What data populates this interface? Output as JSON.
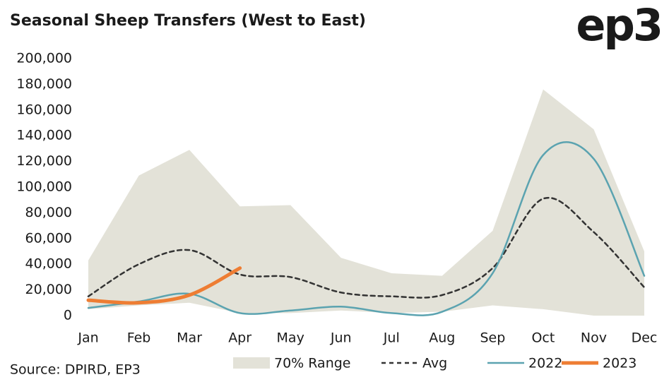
{
  "chart_data": {
    "type": "line",
    "title": "Seasonal Sheep Transfers (West to East)",
    "logo": "ep3",
    "source": "Source: DPIRD, EP3",
    "categories": [
      "Jan",
      "Feb",
      "Mar",
      "Apr",
      "May",
      "Jun",
      "Jul",
      "Aug",
      "Sep",
      "Oct",
      "Nov",
      "Dec"
    ],
    "ylim": [
      0,
      200000
    ],
    "yticks": [
      0,
      {
        "value": 20000,
        "label": "20,000"
      },
      {
        "value": 40000,
        "label": "40,000"
      },
      {
        "value": 60000,
        "label": "60,000"
      },
      {
        "value": 80000,
        "label": "80,000"
      },
      {
        "value": 100000,
        "label": "100,000"
      },
      {
        "value": 120000,
        "label": "120,000"
      },
      {
        "value": 140000,
        "label": "140,000"
      },
      {
        "value": 160000,
        "label": "160,000"
      },
      {
        "value": 180000,
        "label": "180,000"
      },
      {
        "value": 200000,
        "label": "200,000"
      }
    ],
    "series": [
      {
        "name": "70% Range",
        "kind": "range",
        "color": "#e3e2d8",
        "high": [
          43000,
          109000,
          129000,
          85000,
          86000,
          45000,
          33000,
          31000,
          66000,
          176000,
          145000,
          50000
        ],
        "low": [
          5000,
          8000,
          10000,
          2000,
          2000,
          4000,
          2000,
          3000,
          8000,
          5000,
          0,
          0
        ]
      },
      {
        "name": "Avg",
        "color": "#333333",
        "style": "dashed",
        "values": [
          15000,
          40000,
          51000,
          32000,
          30000,
          18000,
          15000,
          16000,
          37000,
          91000,
          65000,
          22000
        ]
      },
      {
        "name": "2022",
        "color": "#5ba3b0",
        "style": "solid",
        "values": [
          6000,
          11000,
          17000,
          2000,
          4000,
          7000,
          2000,
          3000,
          33000,
          125000,
          122000,
          31000
        ]
      },
      {
        "name": "2023",
        "color": "#ee7d33",
        "style": "thick",
        "values": [
          12000,
          10000,
          16000,
          37000,
          null,
          null,
          null,
          null,
          null,
          null,
          null,
          null
        ]
      }
    ]
  }
}
